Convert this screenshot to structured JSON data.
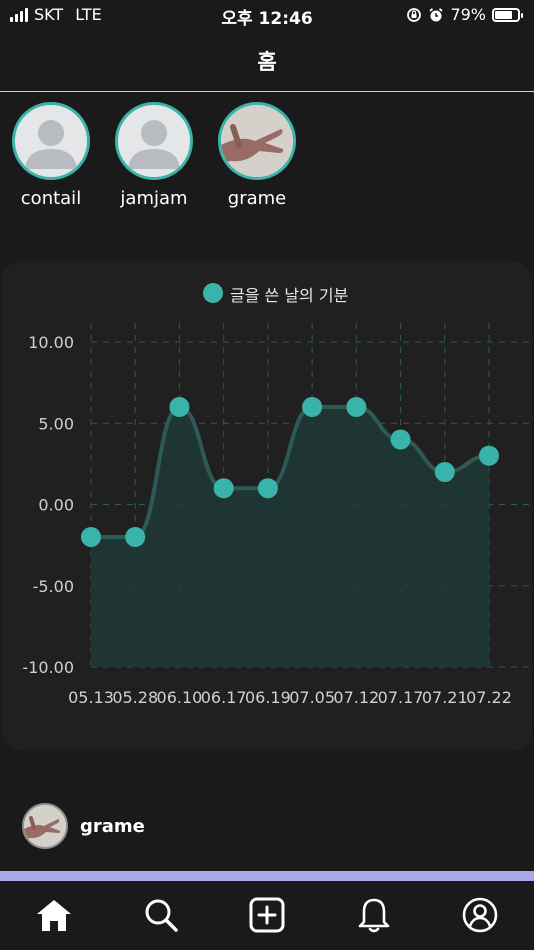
{
  "status_bar": {
    "carrier": "SKT",
    "network": "LTE",
    "time": "오후 12:46",
    "battery_percent": "79%",
    "battery_level": 0.79
  },
  "header": {
    "title": "홈"
  },
  "stories": [
    {
      "name": "contail",
      "avatar": "default-person"
    },
    {
      "name": "jamjam",
      "avatar": "default-person"
    },
    {
      "name": "grame",
      "avatar": "hand-photo"
    }
  ],
  "chart_data": {
    "type": "line",
    "legend": "글을 쓴 날의 기분",
    "legend_position": "top",
    "categories": [
      "05.13",
      "05.28",
      "06.10",
      "06.17",
      "06.19",
      "07.05",
      "07.12",
      "07.17",
      "07.21",
      "07.22"
    ],
    "series": [
      {
        "name": "글을 쓴 날의 기분",
        "values": [
          -2,
          -2,
          6,
          1,
          1,
          6,
          6,
          4,
          2,
          3
        ]
      }
    ],
    "y_ticks": [
      "10.00",
      "5.00",
      "0.00",
      "-5.00",
      "-10.00"
    ],
    "ylim": [
      -10,
      10
    ],
    "grid": true,
    "colors": {
      "line": "#3ab3aa",
      "fill": "#1f3a37",
      "grid": "#2f5a50",
      "axis_text": "#d0d0d0"
    }
  },
  "post": {
    "author": "grame"
  },
  "tab_bar": {
    "items": [
      {
        "icon": "home-icon"
      },
      {
        "icon": "search-icon"
      },
      {
        "icon": "add-post-icon"
      },
      {
        "icon": "bell-icon"
      },
      {
        "icon": "profile-icon"
      }
    ]
  }
}
